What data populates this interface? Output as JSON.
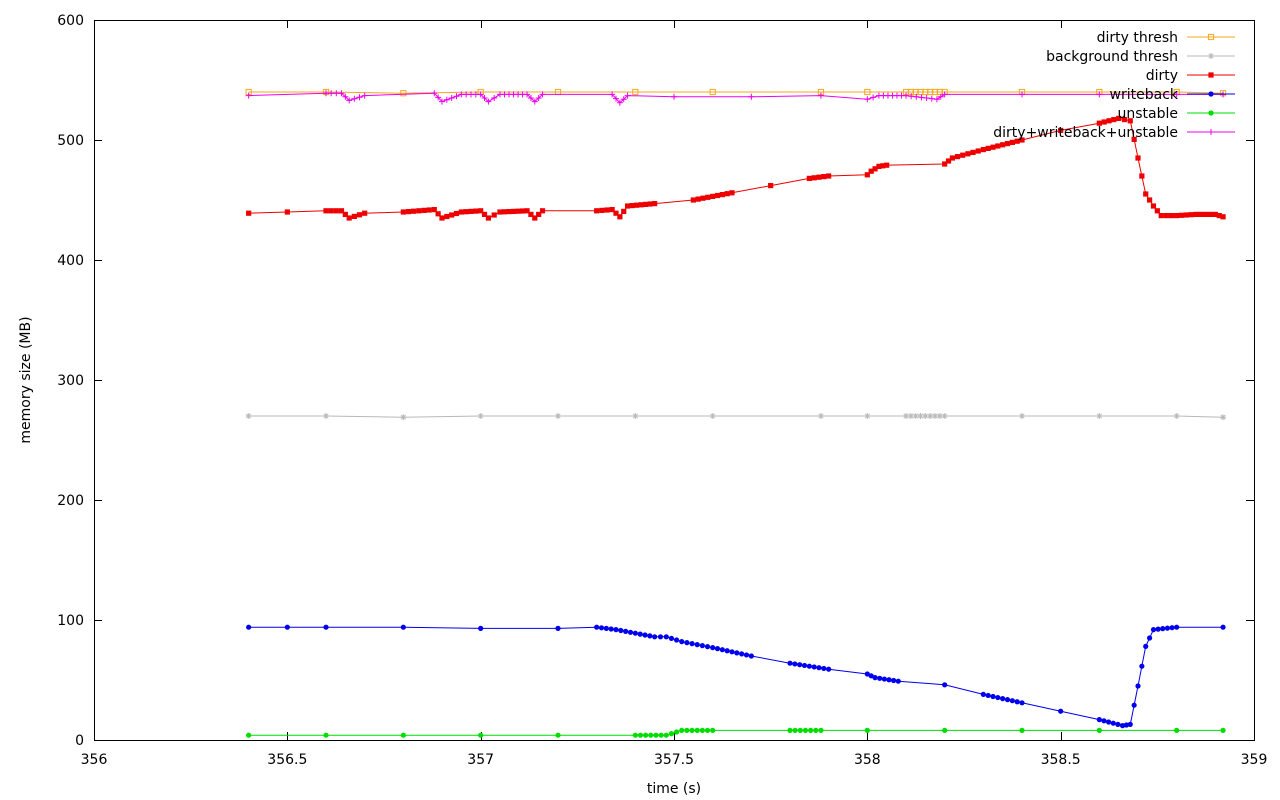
{
  "chart_data": {
    "type": "line",
    "title": "",
    "xlabel": "time (s)",
    "ylabel": "memory size (MB)",
    "xlim": [
      356,
      359
    ],
    "ylim": [
      0,
      600
    ],
    "xticks": [
      356,
      356.5,
      357,
      357.5,
      358,
      358.5,
      359
    ],
    "xtick_labels": [
      "356",
      "356.5",
      "357",
      "357.5",
      "358",
      "358.5",
      "359"
    ],
    "yticks": [
      0,
      100,
      200,
      300,
      400,
      500,
      600
    ],
    "ytick_labels": [
      "0",
      "100",
      "200",
      "300",
      "400",
      "500",
      "600"
    ],
    "grid": false,
    "legend": "top-right",
    "series": [
      {
        "name": "dirty thresh",
        "color": "#f4a71c",
        "marker": "open-square",
        "points": [
          [
            356.4,
            540
          ],
          [
            356.6,
            540
          ],
          [
            356.8,
            539
          ],
          [
            357.0,
            540
          ],
          [
            357.2,
            540
          ],
          [
            357.4,
            540
          ],
          [
            357.6,
            540
          ],
          [
            357.88,
            540
          ],
          [
            358.0,
            540
          ],
          [
            358.1,
            540
          ],
          [
            358.2,
            540
          ],
          [
            358.4,
            540
          ],
          [
            358.6,
            540
          ],
          [
            358.8,
            540
          ],
          [
            358.92,
            539
          ]
        ]
      },
      {
        "name": "background thresh",
        "color": "#b8b8b8",
        "marker": "star",
        "points": [
          [
            356.4,
            270
          ],
          [
            356.6,
            270
          ],
          [
            356.8,
            269
          ],
          [
            357.0,
            270
          ],
          [
            357.2,
            270
          ],
          [
            357.4,
            270
          ],
          [
            357.6,
            270
          ],
          [
            357.88,
            270
          ],
          [
            358.0,
            270
          ],
          [
            358.1,
            270
          ],
          [
            358.2,
            270
          ],
          [
            358.4,
            270
          ],
          [
            358.6,
            270
          ],
          [
            358.8,
            270
          ],
          [
            358.92,
            269
          ]
        ]
      },
      {
        "name": "dirty",
        "color": "#ee0000",
        "marker": "filled-square",
        "points": [
          [
            356.4,
            439
          ],
          [
            356.5,
            440
          ],
          [
            356.6,
            441
          ],
          [
            356.64,
            441
          ],
          [
            356.66,
            435
          ],
          [
            356.7,
            439
          ],
          [
            356.8,
            440
          ],
          [
            356.88,
            442
          ],
          [
            356.9,
            435
          ],
          [
            356.95,
            440
          ],
          [
            357.0,
            441
          ],
          [
            357.02,
            435
          ],
          [
            357.05,
            440
          ],
          [
            357.12,
            441
          ],
          [
            357.14,
            435
          ],
          [
            357.16,
            441
          ],
          [
            357.3,
            441
          ],
          [
            357.34,
            442
          ],
          [
            357.36,
            436
          ],
          [
            357.38,
            445
          ],
          [
            357.45,
            447
          ],
          [
            357.55,
            450
          ],
          [
            357.65,
            456
          ],
          [
            357.75,
            462
          ],
          [
            357.85,
            468
          ],
          [
            357.9,
            470
          ],
          [
            358.0,
            471
          ],
          [
            358.01,
            474
          ],
          [
            358.03,
            478
          ],
          [
            358.05,
            479
          ],
          [
            358.2,
            480
          ],
          [
            358.22,
            485
          ],
          [
            358.3,
            492
          ],
          [
            358.4,
            500
          ],
          [
            358.5,
            508
          ],
          [
            358.6,
            514
          ],
          [
            358.65,
            518
          ],
          [
            358.68,
            516
          ],
          [
            358.7,
            485
          ],
          [
            358.72,
            455
          ],
          [
            358.74,
            445
          ],
          [
            358.76,
            437
          ],
          [
            358.8,
            437
          ],
          [
            358.85,
            438
          ],
          [
            358.9,
            438
          ],
          [
            358.92,
            436
          ]
        ]
      },
      {
        "name": "writeback",
        "color": "#0000ee",
        "marker": "filled-circle",
        "points": [
          [
            356.4,
            94
          ],
          [
            356.5,
            94
          ],
          [
            356.6,
            94
          ],
          [
            356.8,
            94
          ],
          [
            357.0,
            93
          ],
          [
            357.2,
            93
          ],
          [
            357.3,
            94
          ],
          [
            357.35,
            92
          ],
          [
            357.4,
            89
          ],
          [
            357.45,
            86
          ],
          [
            357.48,
            86
          ],
          [
            357.52,
            82
          ],
          [
            357.6,
            77
          ],
          [
            357.7,
            70
          ],
          [
            357.8,
            64
          ],
          [
            357.9,
            59
          ],
          [
            358.0,
            55
          ],
          [
            358.02,
            52
          ],
          [
            358.08,
            49
          ],
          [
            358.2,
            46
          ],
          [
            358.3,
            38
          ],
          [
            358.4,
            31
          ],
          [
            358.5,
            24
          ],
          [
            358.6,
            17
          ],
          [
            358.66,
            12
          ],
          [
            358.68,
            13
          ],
          [
            358.7,
            45
          ],
          [
            358.72,
            78
          ],
          [
            358.74,
            92
          ],
          [
            358.8,
            94
          ],
          [
            358.92,
            94
          ]
        ]
      },
      {
        "name": "unstable",
        "color": "#00dd00",
        "marker": "filled-circle",
        "points": [
          [
            356.4,
            4
          ],
          [
            356.6,
            4
          ],
          [
            356.8,
            4
          ],
          [
            357.0,
            4
          ],
          [
            357.2,
            4
          ],
          [
            357.4,
            4
          ],
          [
            357.48,
            4
          ],
          [
            357.52,
            8
          ],
          [
            357.6,
            8
          ],
          [
            357.8,
            8
          ],
          [
            357.88,
            8
          ],
          [
            358.0,
            8
          ],
          [
            358.2,
            8
          ],
          [
            358.4,
            8
          ],
          [
            358.6,
            8
          ],
          [
            358.8,
            8
          ],
          [
            358.92,
            8
          ]
        ]
      },
      {
        "name": "dirty+writeback+unstable",
        "color": "#ee00ee",
        "marker": "plus",
        "points": [
          [
            356.4,
            537
          ],
          [
            356.6,
            539
          ],
          [
            356.64,
            539
          ],
          [
            356.66,
            533
          ],
          [
            356.7,
            537
          ],
          [
            356.88,
            539
          ],
          [
            356.9,
            532
          ],
          [
            356.95,
            538
          ],
          [
            357.0,
            538
          ],
          [
            357.02,
            532
          ],
          [
            357.05,
            538
          ],
          [
            357.12,
            538
          ],
          [
            357.14,
            532
          ],
          [
            357.16,
            538
          ],
          [
            357.34,
            538
          ],
          [
            357.36,
            531
          ],
          [
            357.38,
            537
          ],
          [
            357.5,
            536
          ],
          [
            357.7,
            536
          ],
          [
            357.88,
            537
          ],
          [
            358.0,
            534
          ],
          [
            358.03,
            537
          ],
          [
            358.1,
            537
          ],
          [
            358.18,
            534
          ],
          [
            358.2,
            538
          ],
          [
            358.4,
            538
          ],
          [
            358.6,
            538
          ],
          [
            358.8,
            538
          ],
          [
            358.92,
            538
          ]
        ]
      }
    ]
  }
}
